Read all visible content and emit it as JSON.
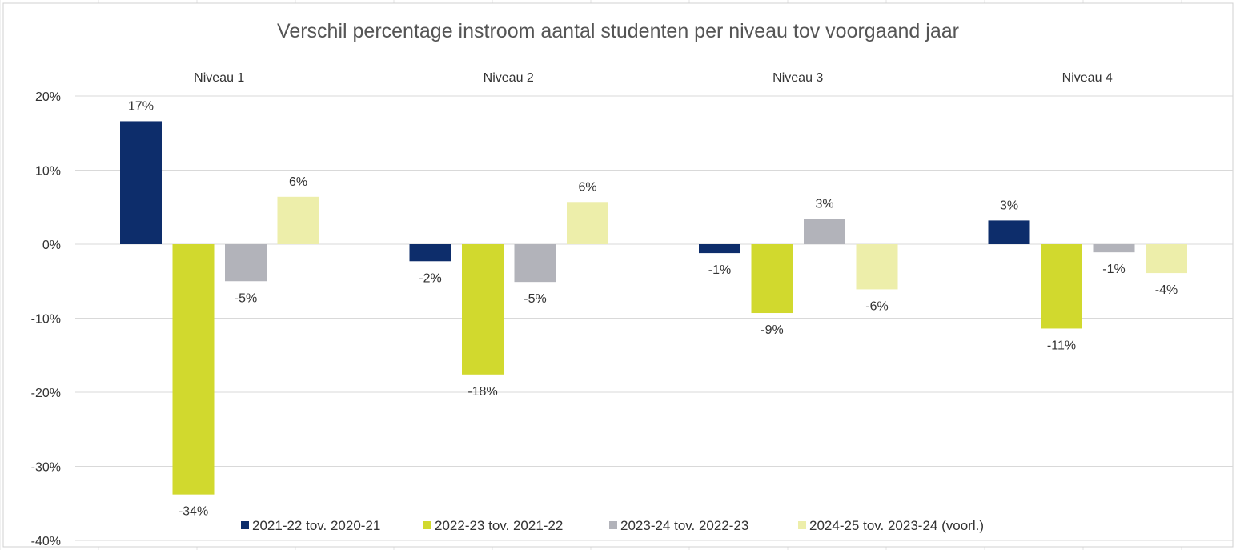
{
  "chart_data": {
    "type": "bar",
    "title": "Verschil percentage instroom aantal studenten per niveau tov voorgaand jaar",
    "categories": [
      "Niveau 1",
      "Niveau 2",
      "Niveau 3",
      "Niveau 4"
    ],
    "category_position": "top",
    "ylim": [
      -40,
      20
    ],
    "yticks": [
      20,
      10,
      0,
      -10,
      -20,
      -30,
      -40
    ],
    "ytick_labels": [
      "20%",
      "10%",
      "0%",
      "-10%",
      "-20%",
      "-30%",
      "-40%"
    ],
    "grid": true,
    "legend_position": "bottom",
    "series": [
      {
        "name": "2021-22 tov. 2020-21",
        "color": "#0d2d6b",
        "values": [
          16.6,
          -2.3,
          -1.2,
          3.2
        ],
        "labels": [
          "17%",
          "-2%",
          "-1%",
          "3%"
        ]
      },
      {
        "name": "2022-23 tov. 2021-22",
        "color": "#d1d92e",
        "values": [
          -33.8,
          -17.6,
          -9.3,
          -11.4
        ],
        "labels": [
          "-34%",
          "-18%",
          "-9%",
          "-11%"
        ]
      },
      {
        "name": "2023-24 tov. 2022-23",
        "color": "#b2b3ba",
        "values": [
          -5.0,
          -5.1,
          3.4,
          -1.1
        ],
        "labels": [
          "-5%",
          "-5%",
          "3%",
          "-1%"
        ]
      },
      {
        "name": "2024-25 tov. 2023-24 (voorl.)",
        "color": "#edeeaa",
        "values": [
          6.4,
          5.7,
          -6.1,
          -3.9
        ],
        "labels": [
          "6%",
          "6%",
          "-6%",
          "-4%"
        ]
      }
    ]
  }
}
